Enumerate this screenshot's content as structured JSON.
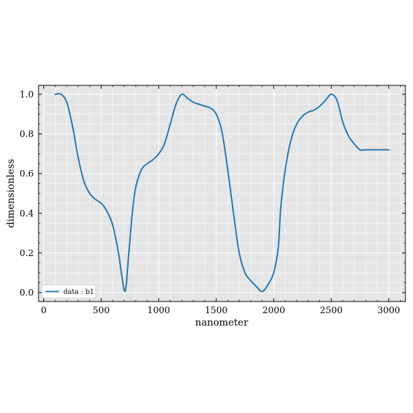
{
  "chart_data": {
    "type": "line",
    "xlabel": "nanometer",
    "ylabel": "dimensionless",
    "xlim": [
      -45,
      3145
    ],
    "ylim": [
      -0.045,
      1.045
    ],
    "xticks": [
      0,
      500,
      1000,
      1500,
      2000,
      2500,
      3000
    ],
    "xtick_labels": [
      "0",
      "500",
      "1000",
      "1500",
      "2000",
      "2500",
      "3000"
    ],
    "yticks": [
      0.0,
      0.2,
      0.4,
      0.6,
      0.8,
      1.0
    ],
    "ytick_labels": [
      "0.0",
      "0.2",
      "0.4",
      "0.6",
      "0.8",
      "1.0"
    ],
    "grid": true,
    "legend_position": "lower-left",
    "colors": {
      "plot_background": "#e5e5e5",
      "grid": "#ffffff",
      "series": "#1f77b4"
    },
    "series": [
      {
        "name": "data : b1",
        "x": [
          100,
          150,
          200,
          250,
          300,
          350,
          400,
          450,
          500,
          550,
          600,
          650,
          680,
          710,
          740,
          770,
          800,
          850,
          900,
          950,
          1000,
          1050,
          1100,
          1150,
          1200,
          1250,
          1300,
          1350,
          1400,
          1450,
          1500,
          1550,
          1600,
          1650,
          1700,
          1750,
          1800,
          1850,
          1900,
          1950,
          2000,
          2040,
          2060,
          2100,
          2150,
          2200,
          2250,
          2300,
          2350,
          2400,
          2450,
          2500,
          2550,
          2600,
          2650,
          2700,
          2750,
          2800,
          2850,
          2900,
          2950,
          3000
        ],
        "values": [
          1.0,
          1.0,
          0.96,
          0.84,
          0.68,
          0.56,
          0.5,
          0.47,
          0.45,
          0.41,
          0.34,
          0.2,
          0.08,
          0.01,
          0.2,
          0.4,
          0.53,
          0.62,
          0.65,
          0.67,
          0.7,
          0.75,
          0.85,
          0.95,
          1.0,
          0.98,
          0.96,
          0.95,
          0.94,
          0.93,
          0.9,
          0.81,
          0.62,
          0.4,
          0.2,
          0.1,
          0.06,
          0.03,
          0.005,
          0.04,
          0.1,
          0.23,
          0.42,
          0.62,
          0.77,
          0.85,
          0.89,
          0.91,
          0.92,
          0.94,
          0.97,
          1.0,
          0.97,
          0.86,
          0.79,
          0.75,
          0.72,
          0.72,
          0.72,
          0.72,
          0.72,
          0.72
        ]
      }
    ]
  }
}
